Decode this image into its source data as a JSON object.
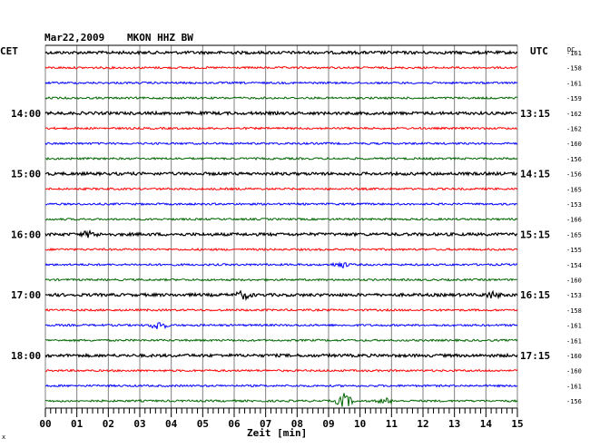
{
  "header": {
    "date": "Mar22,2009",
    "station": "MKON HHZ BW",
    "left_timezone": "CET",
    "right_timezone": "UTC",
    "dc_header": "DC"
  },
  "chart_data": {
    "type": "line",
    "title": "Mar22,2009  MKON HHZ BW",
    "xlabel": "Zeit [min]",
    "ylabel": "",
    "xlim": [
      0,
      15
    ],
    "x_ticks": [
      "00",
      "01",
      "02",
      "03",
      "04",
      "05",
      "06",
      "07",
      "08",
      "09",
      "10",
      "11",
      "12",
      "13",
      "14",
      "15"
    ],
    "trace_colors": [
      "#000000",
      "#ff0000",
      "#0000ff",
      "#006600"
    ],
    "left_hour_labels": [
      {
        "trace": 4,
        "label": "14:00"
      },
      {
        "trace": 8,
        "label": "15:00"
      },
      {
        "trace": 12,
        "label": "16:00"
      },
      {
        "trace": 16,
        "label": "17:00"
      },
      {
        "trace": 20,
        "label": "18:00"
      }
    ],
    "right_hour_labels": [
      {
        "trace": 4,
        "label": "13:15"
      },
      {
        "trace": 8,
        "label": "14:15"
      },
      {
        "trace": 12,
        "label": "15:15"
      },
      {
        "trace": 16,
        "label": "16:15"
      },
      {
        "trace": 20,
        "label": "17:15"
      }
    ],
    "dc_offsets": [
      "-161",
      "-158",
      "-161",
      "-159",
      "-162",
      "-162",
      "-160",
      "-156",
      "-156",
      "-165",
      "-153",
      "-166",
      "-165",
      "-155",
      "-154",
      "-160",
      "-153",
      "-158",
      "-161",
      "-161",
      "-160",
      "-160",
      "-161",
      "-156"
    ],
    "grid": true,
    "events": [
      {
        "trace": 12,
        "minute": 1.4,
        "amplitude": 3
      },
      {
        "trace": 14,
        "minute": 9.4,
        "amplitude": 3
      },
      {
        "trace": 16,
        "minute": 6.3,
        "amplitude": 4
      },
      {
        "trace": 16,
        "minute": 14.2,
        "amplitude": 3
      },
      {
        "trace": 18,
        "minute": 3.6,
        "amplitude": 5
      },
      {
        "trace": 23,
        "minute": 9.5,
        "amplitude": 8
      },
      {
        "trace": 23,
        "minute": 10.8,
        "amplitude": 3
      }
    ]
  }
}
